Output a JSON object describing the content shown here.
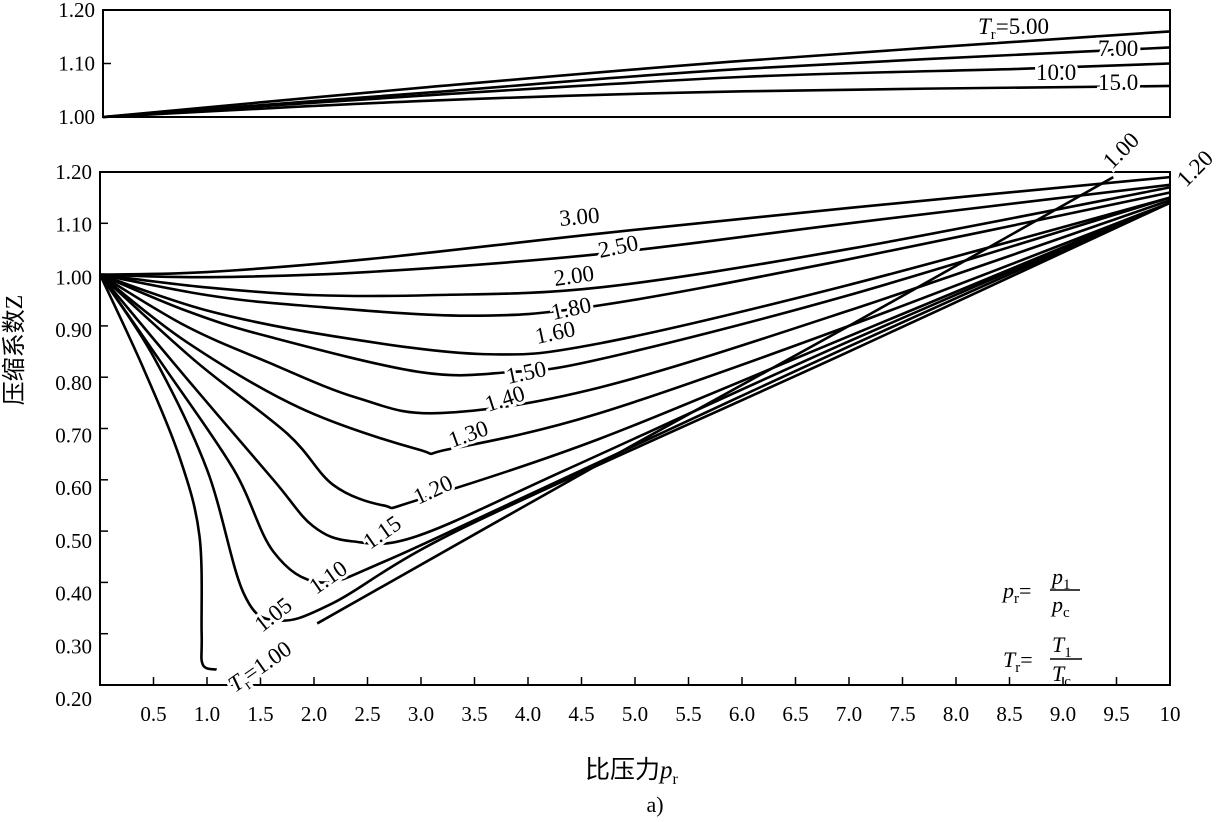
{
  "chart_data": [
    {
      "type": "line",
      "panel": "top",
      "xlim": [
        0,
        10
      ],
      "ylim": [
        1.0,
        1.2
      ],
      "yticks": [
        "1.00",
        "1.10",
        "1.20"
      ],
      "series": [
        {
          "name": "Tr=5.00",
          "label": "5.00",
          "label_prefix": "T",
          "label_sub": "r",
          "points": [
            [
              0,
              1.0
            ],
            [
              3,
              1.055
            ],
            [
              6,
              1.105
            ],
            [
              10,
              1.16
            ]
          ]
        },
        {
          "name": "Tr=7.00",
          "label": "7.00",
          "points": [
            [
              0,
              1.0
            ],
            [
              3,
              1.045
            ],
            [
              6,
              1.09
            ],
            [
              10,
              1.13
            ]
          ]
        },
        {
          "name": "Tr=10.0",
          "label": "10.0",
          "points": [
            [
              0,
              1.0
            ],
            [
              3,
              1.04
            ],
            [
              6,
              1.075
            ],
            [
              8.6,
              1.09
            ],
            [
              10,
              1.1
            ]
          ]
        },
        {
          "name": "Tr=15.0",
          "label": "15.0",
          "points": [
            [
              0,
              1.0
            ],
            [
              3,
              1.03
            ],
            [
              6,
              1.048
            ],
            [
              10,
              1.058
            ]
          ]
        }
      ]
    },
    {
      "type": "line",
      "panel": "bottom",
      "xlabel": "比压力",
      "xlabel_var": "p",
      "xlabel_sub": "r",
      "ylabel": "压缩系数Z",
      "xlim": [
        0,
        10
      ],
      "ylim": [
        0.2,
        1.2
      ],
      "xticks": [
        "0.5",
        "1.0",
        "1.5",
        "2.0",
        "2.5",
        "3.0",
        "3.5",
        "4.0",
        "4.5",
        "5.0",
        "5.5",
        "6.0",
        "6.5",
        "7.0",
        "7.5",
        "8.0",
        "8.5",
        "9.0",
        "9.5",
        "10"
      ],
      "yticks": [
        "0.20",
        "0.30",
        "0.40",
        "0.50",
        "0.60",
        "0.70",
        "0.80",
        "0.90",
        "1.00",
        "1.10",
        "1.20"
      ],
      "series": [
        {
          "name": "Tr=3.00",
          "label": "3.00",
          "points": [
            [
              0,
              1.0
            ],
            [
              1,
              1.005
            ],
            [
              2.5,
              1.03
            ],
            [
              4.67,
              1.08
            ],
            [
              7,
              1.13
            ],
            [
              10,
              1.19
            ]
          ]
        },
        {
          "name": "Tr=2.50",
          "label": "2.50",
          "points": [
            [
              0,
              1.0
            ],
            [
              1,
              0.995
            ],
            [
              2.5,
              1.005
            ],
            [
              4.67,
              1.04
            ],
            [
              7,
              1.1
            ],
            [
              10,
              1.175
            ]
          ]
        },
        {
          "name": "Tr=2.00",
          "label": "2.00",
          "points": [
            [
              0,
              1.0
            ],
            [
              1,
              0.975
            ],
            [
              2,
              0.96
            ],
            [
              3.1,
              0.96
            ],
            [
              4.67,
              0.975
            ],
            [
              7,
              1.05
            ],
            [
              10,
              1.17
            ]
          ]
        },
        {
          "name": "Tr=1.80",
          "label": "1.80",
          "points": [
            [
              0,
              1.0
            ],
            [
              1,
              0.96
            ],
            [
              1.87,
              0.94
            ],
            [
              3.43,
              0.92
            ],
            [
              4.67,
              0.94
            ],
            [
              7,
              1.03
            ],
            [
              10,
              1.16
            ]
          ]
        },
        {
          "name": "Tr=1.60",
          "label": "1.60",
          "points": [
            [
              0,
              1.0
            ],
            [
              1,
              0.93
            ],
            [
              2.18,
              0.88
            ],
            [
              3.58,
              0.845
            ],
            [
              4.67,
              0.866
            ],
            [
              7,
              0.98
            ],
            [
              10,
              1.15
            ]
          ]
        },
        {
          "name": "Tr=1.50",
          "label": "1.50",
          "points": [
            [
              0,
              1.0
            ],
            [
              0.8,
              0.93
            ],
            [
              1.56,
              0.88
            ],
            [
              2.99,
              0.81
            ],
            [
              3.83,
              0.81
            ],
            [
              4.67,
              0.835
            ],
            [
              7,
              0.96
            ],
            [
              10,
              1.15
            ]
          ]
        },
        {
          "name": "Tr=1.40",
          "label": "1.40",
          "points": [
            [
              0,
              1.0
            ],
            [
              0.8,
              0.9
            ],
            [
              1.56,
              0.83
            ],
            [
              2.4,
              0.76
            ],
            [
              3.18,
              0.73
            ],
            [
              4.67,
              0.78
            ],
            [
              7,
              0.93
            ],
            [
              10,
              1.145
            ]
          ]
        },
        {
          "name": "Tr=1.30",
          "label": "1.30",
          "points": [
            [
              0,
              1.0
            ],
            [
              0.8,
              0.87
            ],
            [
              1.87,
              0.74
            ],
            [
              2.96,
              0.66
            ],
            [
              3.27,
              0.66
            ],
            [
              4.67,
              0.73
            ],
            [
              7,
              0.9
            ],
            [
              10,
              1.14
            ]
          ]
        },
        {
          "name": "Tr=1.20",
          "label": "1.20",
          "points": [
            [
              0,
              1.0
            ],
            [
              0.9,
              0.83
            ],
            [
              1.75,
              0.69
            ],
            [
              2.18,
              0.59
            ],
            [
              2.65,
              0.55
            ],
            [
              2.96,
              0.56
            ],
            [
              4.67,
              0.68
            ],
            [
              7,
              0.88
            ],
            [
              10,
              1.14
            ]
          ]
        },
        {
          "name": "Tr=1.15",
          "label": "1.15",
          "points": [
            [
              0,
              1.0
            ],
            [
              0.8,
              0.8
            ],
            [
              1.62,
              0.6
            ],
            [
              1.99,
              0.51
            ],
            [
              2.36,
              0.48
            ],
            [
              2.96,
              0.49
            ],
            [
              4.36,
              0.62
            ],
            [
              7,
              0.87
            ],
            [
              10,
              1.14
            ]
          ]
        },
        {
          "name": "Tr=1.10",
          "label": "1.10",
          "points": [
            [
              0,
              1.0
            ],
            [
              0.6,
              0.82
            ],
            [
              1.25,
              0.62
            ],
            [
              1.62,
              0.46
            ],
            [
              2.06,
              0.4
            ],
            [
              2.65,
              0.44
            ],
            [
              4.0,
              0.57
            ],
            [
              7,
              0.86
            ],
            [
              10,
              1.14
            ]
          ]
        },
        {
          "name": "Tr=1.05",
          "label": "1.05",
          "points": [
            [
              0,
              1.0
            ],
            [
              0.5,
              0.84
            ],
            [
              1.0,
              0.62
            ],
            [
              1.34,
              0.38
            ],
            [
              1.65,
              0.326
            ],
            [
              2.18,
              0.36
            ],
            [
              3.43,
              0.51
            ],
            [
              7,
              0.85
            ],
            [
              10,
              1.14
            ]
          ]
        },
        {
          "name": "Tr=1.00",
          "label": "1.00",
          "label_prefix": "T",
          "label_sub": "r",
          "label_end": "1.00",
          "points": [
            [
              0,
              1.0
            ],
            [
              0.4,
              0.82
            ],
            [
              0.75,
              0.64
            ],
            [
              0.93,
              0.49
            ],
            [
              0.95,
              0.3
            ],
            [
              0.96,
              0.24
            ],
            [
              1.09,
              0.23
            ]
          ],
          "points_high": [
            [
              2.03,
              0.32
            ],
            [
              5,
              0.67
            ],
            [
              7,
              0.9
            ],
            [
              9.47,
              1.19
            ]
          ]
        }
      ],
      "annotations": {
        "pr_def": {
          "lhs": "p",
          "lhs_sub": "r",
          "num": "p",
          "num_sub": "1",
          "den": "p",
          "den_sub": "c"
        },
        "tr_def": {
          "lhs": "T",
          "lhs_sub": "r",
          "num": "T",
          "num_sub": "1",
          "den": "T",
          "den_sub": "c"
        },
        "right_label_120": "1.20"
      },
      "caption": "a)"
    }
  ]
}
